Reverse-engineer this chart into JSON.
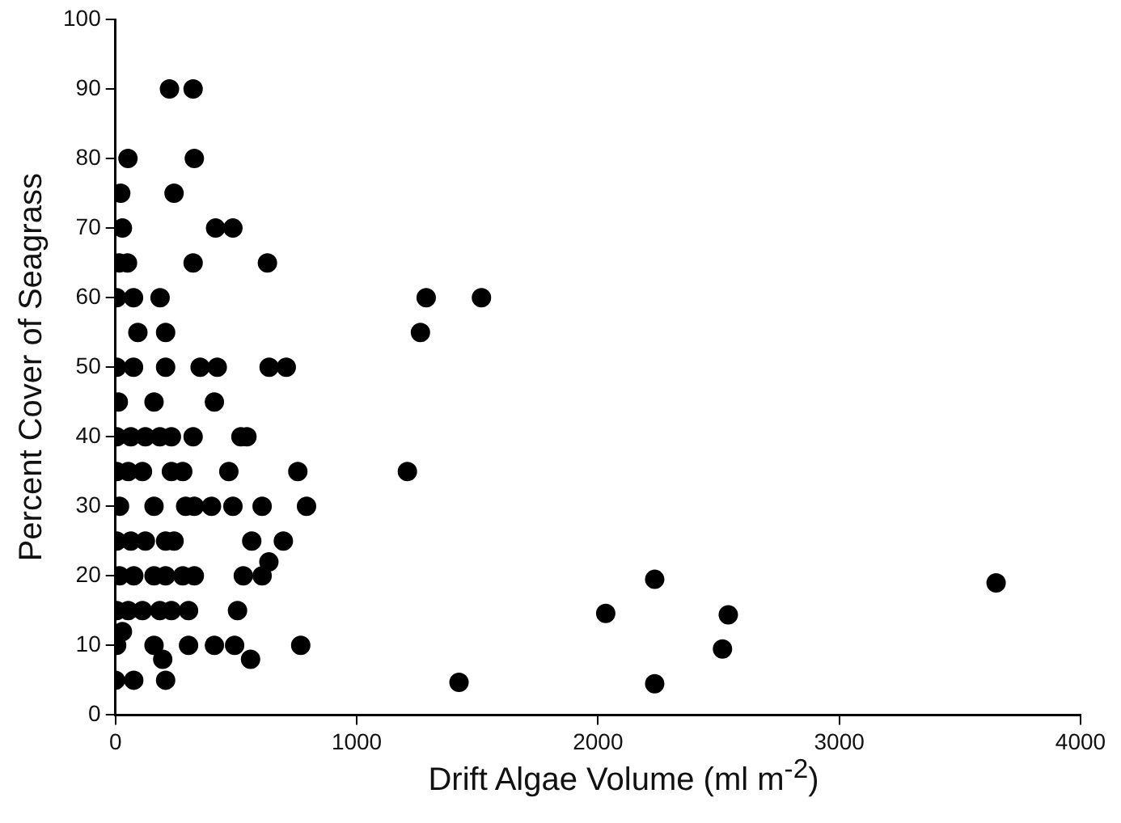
{
  "chart_data": {
    "type": "scatter",
    "xlabel": "Drift Algae Volume (ml m$^{-2}$)",
    "ylabel": "Percent Cover of Seagrass",
    "xlim": [
      0,
      4000
    ],
    "xticks": [
      0,
      1000,
      2000,
      3000,
      4000
    ],
    "ylim": [
      0,
      100
    ],
    "yticks": [
      0,
      10,
      20,
      30,
      40,
      50,
      60,
      70,
      80,
      90,
      100
    ],
    "grid": false,
    "legend": false,
    "marker": "circle",
    "series": [
      {
        "color": "#000000",
        "x": [
          224,
          322,
          52,
          327,
          22,
          243,
          29,
          415,
          487,
          15,
          50,
          322,
          630,
          5,
          75,
          185,
          1288,
          1517,
          93,
          208,
          1264,
          5,
          75,
          208,
          351,
          422,
          637,
          708,
          12,
          160,
          410,
          5,
          64,
          124,
          184,
          232,
          322,
          520,
          545,
          5,
          53,
          112,
          232,
          279,
          470,
          756,
          1210,
          17,
          160,
          291,
          327,
          398,
          487,
          608,
          792,
          5,
          64,
          124,
          208,
          243,
          565,
          696,
          636,
          17,
          76,
          160,
          208,
          279,
          327,
          530,
          608,
          5,
          53,
          112,
          184,
          232,
          303,
          506,
          29,
          5,
          160,
          303,
          410,
          494,
          768,
          196,
          560,
          0,
          76,
          208,
          2235,
          2032,
          2540,
          2516,
          1424,
          2235,
          3650
        ],
        "values": [
          90,
          90,
          80,
          80,
          75,
          75,
          70,
          70,
          70,
          65,
          65,
          65,
          65,
          60,
          60,
          60,
          60,
          60,
          55,
          55,
          55,
          50,
          50,
          50,
          50,
          50,
          50,
          50,
          45,
          45,
          45,
          40,
          40,
          40,
          40,
          40,
          40,
          40,
          40,
          35,
          35,
          35,
          35,
          35,
          35,
          35,
          35,
          30,
          30,
          30,
          30,
          30,
          30,
          30,
          30,
          25,
          25,
          25,
          25,
          25,
          25,
          25,
          22,
          20,
          20,
          20,
          20,
          20,
          20,
          20,
          20,
          15,
          15,
          15,
          15,
          15,
          15,
          15,
          12,
          10,
          10,
          10,
          10,
          10,
          10,
          8,
          8,
          5,
          5,
          5,
          19.5,
          14.6,
          14.4,
          9.5,
          4.7,
          4.5,
          19
        ]
      }
    ]
  }
}
